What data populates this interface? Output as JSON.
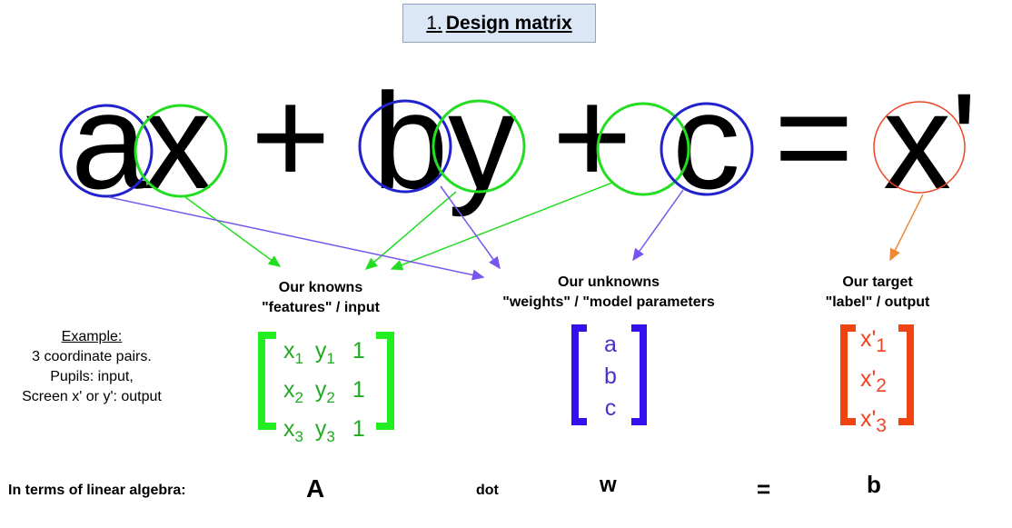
{
  "title": {
    "number": "1.",
    "text": "Design matrix"
  },
  "equation": {
    "a": "a",
    "x": "x",
    "plus1": "+",
    "b": "b",
    "y": "y",
    "plus2": "+",
    "c": "c",
    "equals": "=",
    "xprime": "x'"
  },
  "groups": {
    "knowns": {
      "line1": "Our knowns",
      "line2": "\"features\" / input"
    },
    "unknowns": {
      "line1": "Our unknowns",
      "line2": "\"weights\" / \"model parameters"
    },
    "target": {
      "line1": "Our target",
      "line2": "\"label\" / output"
    }
  },
  "example": {
    "heading": "Example:",
    "lines": [
      "3 coordinate pairs.",
      "Pupils: input,",
      "Screen x' or y': output"
    ]
  },
  "feature_matrix": [
    {
      "x": "x",
      "xs": "1",
      "y": "y",
      "ys": "1",
      "one": "1"
    },
    {
      "x": "x",
      "xs": "2",
      "y": "y",
      "ys": "2",
      "one": "1"
    },
    {
      "x": "x",
      "xs": "3",
      "y": "y",
      "ys": "3",
      "one": "1"
    }
  ],
  "weights": [
    "a",
    "b",
    "c"
  ],
  "targets": [
    {
      "base": "x'",
      "sub": "1"
    },
    {
      "base": "x'",
      "sub": "2"
    },
    {
      "base": "x'",
      "sub": "3"
    }
  ],
  "bottom": {
    "label": "In terms of linear algebra:",
    "A": "A",
    "dot": "dot",
    "w": "w",
    "equals": "=",
    "b": "b"
  },
  "colors": {
    "blue": "#2222cc",
    "green": "#22dd22",
    "red": "#ee4422",
    "purple": "#7755ee",
    "orange": "#ee8833",
    "matrix_green": "#22ee22",
    "matrix_blue": "#3311ee",
    "matrix_red": "#ee4411",
    "green_text": "#22aa22",
    "blue_text": "#4433cc",
    "red_text": "#ee4422"
  }
}
